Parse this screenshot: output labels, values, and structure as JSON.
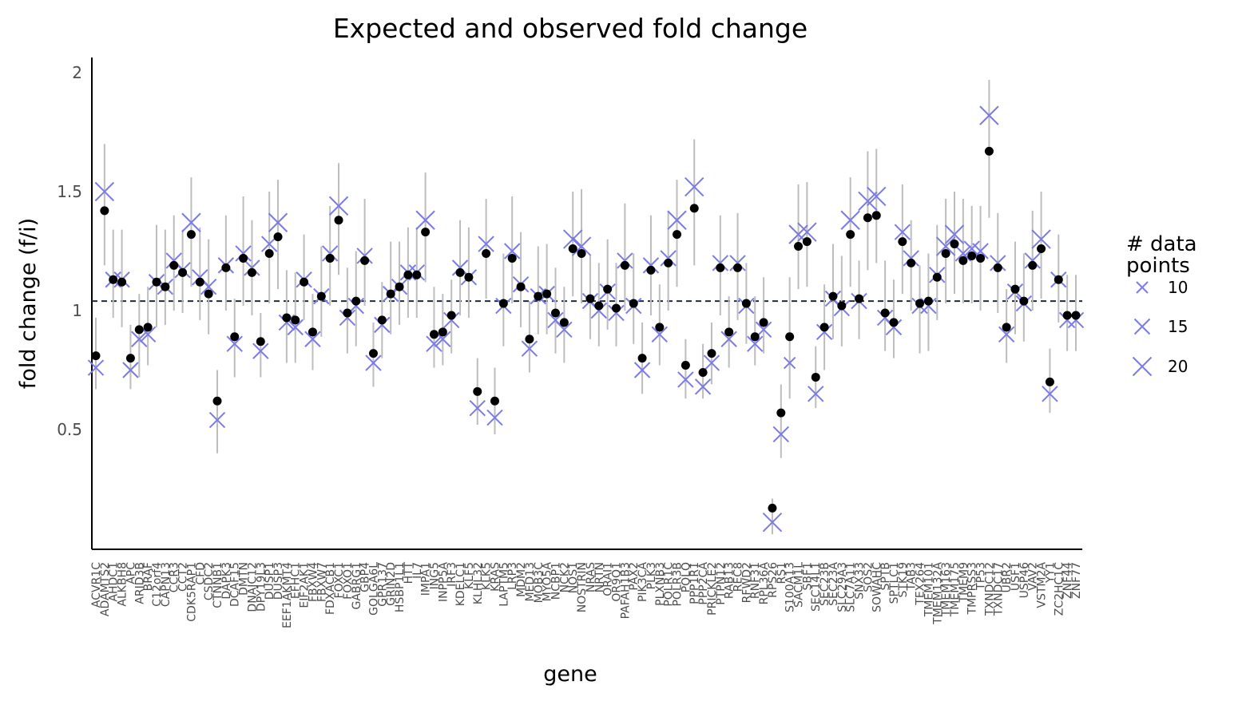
{
  "chart_data": {
    "type": "scatter",
    "title": "Expected and observed fold change",
    "xlabel": "gene",
    "ylabel": "fold change (f/i)",
    "ylim": [
      0,
      2.07
    ],
    "yticks": [
      0.5,
      1,
      1.5,
      2
    ],
    "ytick_labels": [
      "0.5",
      "1",
      "1.5",
      "2"
    ],
    "reference_line": 1.04,
    "grid": false,
    "legend": {
      "title_lines": [
        "# data",
        "points"
      ],
      "placement": "right",
      "entries": [
        {
          "label": "10",
          "size": 10
        },
        {
          "label": "15",
          "size": 15
        },
        {
          "label": "20",
          "size": 20
        }
      ]
    },
    "colors": {
      "observed": "#000000",
      "expected": "#7b7be8",
      "error_bar": "#bdbdbd",
      "reference": "#1c2a44"
    },
    "categories": [
      "ACVR1C",
      "ADAMTS2",
      "AHDC1",
      "ALKBH8",
      "APC",
      "ARID3B",
      "BRAF",
      "C12orf4",
      "CAPN13",
      "CCR3",
      "CCT2",
      "CDK5RAP1",
      "CFD",
      "CSDC2",
      "CTNNB1",
      "DAPK3",
      "DCAF15",
      "DMTN",
      "DNAJC12",
      "DPY19L3",
      "DUSP1",
      "DUSP3",
      "EEF1AKMT4",
      "EFHC1",
      "EIF2AK1",
      "FBXW4",
      "FBXW7",
      "FDXACB1",
      "FOXC1",
      "FOXO1",
      "GABRG1",
      "GBP4",
      "GOLGA6L",
      "GPR137",
      "GRIN2D",
      "HSBP1L1",
      "HTT",
      "IL7",
      "IMPA1",
      "ING5",
      "INPP5A",
      "IRF3",
      "KDELC1",
      "KLF5",
      "KLHL32",
      "KLK5",
      "KRAS",
      "LAPTM5",
      "LRP3",
      "MDM2",
      "MED13",
      "MOB3C",
      "MYO5A",
      "NCBP1",
      "NCK2",
      "NOS1",
      "NOSTRIN",
      "NRAS",
      "NRTN",
      "ORAI1",
      "OR9Q1",
      "PAFAH1B3",
      "PAX2",
      "PIK3CA",
      "PLK3",
      "PLXNB3",
      "POLR1C",
      "POLR3B",
      "POLQ",
      "PPP1R1",
      "PPP2CA",
      "PRICKLE2",
      "PTPN12",
      "RAB13",
      "REC8",
      "RFWD2",
      "RNF31",
      "RPL36A",
      "RPS26",
      "RS1",
      "S100A13",
      "SACM1L",
      "SBF1",
      "SEC14L1",
      "SEC23B",
      "SEC23A",
      "SLC29A3",
      "SLC7A11",
      "SNX33",
      "SOS2",
      "SOWAHC",
      "SPTB",
      "SPTLC1",
      "STK19",
      "TAB3",
      "TEX264",
      "TMEM101",
      "TMEM132A",
      "TMEM163",
      "TMEM175",
      "TMEM9",
      "TMPRSS3",
      "TP53",
      "TXNDC12",
      "TXNDC17",
      "UBR2",
      "USF1",
      "USP46",
      "VAV2",
      "VSTM2A",
      "YY1",
      "ZC2HC1C",
      "ZNF44",
      "ZNF77"
    ],
    "category_labels": [
      "ACVR1C",
      "ADAMTS2",
      "AHDC1",
      "ALKBH8",
      "APC",
      "ARID3B",
      "BRAF",
      "C12orf4",
      "CAPN13",
      "CCR3",
      "CCT2",
      "CDK5RAP1",
      "CFD",
      "CSDC2",
      "CTNNB1",
      "DAPK3",
      "DCAF15",
      "DMTN",
      "DNAJC12",
      "DPY19L3",
      "DUSP1",
      "DUSP3",
      "EEF1AKMT4",
      "EFHC1",
      "EIF2AK1",
      "FBXW4",
      "FBXW7",
      "FDXACB1",
      "FOXC1",
      "FOXO1",
      "GABRG1",
      "GBP4",
      "GOLGA6L",
      "GPR137",
      "GRIN2D",
      "HSBP1L1",
      "HTT",
      "IL7",
      "IMPA1",
      "ING5",
      "INPP5A",
      "IRF3",
      "KDELC1",
      "KLF5",
      "KLHL32",
      "KLK5",
      "KRAS",
      "LAPTM5",
      "LRP3",
      "MDM2",
      "MED13",
      "MOB3C",
      "MYO5A",
      "NCBP1",
      "NCK2",
      "NOS1",
      "NOSTRIN",
      "NRAS",
      "NRTN",
      "ORAI1",
      "OR9Q1",
      "PAFAH1B3",
      "PAX2",
      "PIK3CA",
      "PLK3",
      "PLXNB3",
      "POLR1C",
      "POLR3B",
      "POLQ",
      "PPP1R1",
      "PPP2CA",
      "PRICKLE2",
      "PTPN12",
      "RAB13",
      "REC8",
      "RFWD2",
      "RNF31",
      "RPL36A",
      "RPS26",
      "RS1",
      "S100A13",
      "SACM1L",
      "SBF1",
      "SEC14L1",
      "SEC23B",
      "SEC23A",
      "SLC29A3",
      "SLC7A11",
      "SNX33",
      "SOS2",
      "SOWAHC",
      "SPTB",
      "SPTLC1",
      "STK19",
      "TAB3",
      "TEX264",
      "TMEM101",
      "TMEM132A",
      "TMEM163",
      "TMEM175",
      "TMEM9",
      "TMPRSS3",
      "TP53",
      "TXNDC12",
      "TXNDC17",
      "UBR2",
      "USF1",
      "USP46",
      "VAV2",
      "VSTM2A",
      "YY1",
      "ZC2HC1C",
      "ZNF44",
      "ZNF77"
    ],
    "series": [
      {
        "name": "observed",
        "values": [
          0.81,
          1.42,
          1.13,
          1.12,
          0.8,
          0.92,
          0.93,
          1.12,
          1.1,
          1.19,
          1.16,
          1.32,
          1.12,
          1.07,
          0.62,
          1.18,
          0.89,
          1.22,
          1.16,
          0.87,
          1.24,
          1.31,
          0.97,
          0.96,
          1.12,
          0.91,
          1.06,
          1.22,
          1.38,
          0.99,
          1.04,
          1.21,
          0.82,
          0.96,
          1.07,
          1.1,
          1.15,
          1.15,
          1.33,
          0.9,
          0.91,
          0.98,
          1.16,
          1.14,
          0.66,
          1.24,
          0.62,
          1.03,
          1.22,
          1.1,
          0.88,
          1.06,
          1.07,
          0.99,
          0.95,
          1.26,
          1.24,
          1.05,
          1.02,
          1.09,
          1.01,
          1.19,
          1.03,
          0.8,
          1.17,
          0.93,
          1.2,
          1.32,
          0.77,
          1.43,
          0.74,
          0.82,
          1.18,
          0.91,
          1.18,
          1.03,
          0.89,
          0.95,
          0.17,
          0.57,
          0.89,
          1.27,
          1.29,
          0.72,
          0.93,
          1.06,
          1.02,
          1.32,
          1.05,
          1.39,
          1.4,
          0.99,
          0.95,
          1.29,
          1.2,
          1.03,
          1.04,
          1.14,
          1.24,
          1.28,
          1.21,
          1.23,
          1.22,
          1.67,
          1.18,
          0.93,
          1.09,
          1.04,
          1.19,
          1.26,
          0.7,
          1.13,
          0.98,
          0.98
        ]
      },
      {
        "name": "expected",
        "values": [
          0.76,
          1.5,
          1.13,
          1.13,
          0.75,
          0.88,
          0.9,
          1.12,
          1.1,
          1.21,
          1.17,
          1.37,
          1.14,
          1.1,
          0.54,
          1.19,
          0.86,
          1.24,
          1.18,
          0.83,
          1.28,
          1.37,
          0.95,
          0.93,
          1.13,
          0.88,
          1.06,
          1.24,
          1.44,
          0.97,
          1.02,
          1.23,
          0.78,
          0.94,
          1.07,
          1.1,
          1.16,
          1.16,
          1.38,
          0.86,
          0.88,
          0.96,
          1.18,
          1.14,
          0.59,
          1.28,
          0.55,
          1.02,
          1.25,
          1.11,
          0.84,
          1.06,
          1.07,
          0.96,
          0.92,
          1.3,
          1.27,
          1.04,
          1.0,
          1.08,
          0.99,
          1.21,
          1.02,
          0.75,
          1.19,
          0.9,
          1.22,
          1.38,
          0.71,
          1.52,
          0.68,
          0.78,
          1.2,
          0.88,
          1.2,
          1.02,
          0.86,
          0.92,
          0.11,
          0.48,
          0.78,
          1.32,
          1.33,
          0.65,
          0.91,
          1.05,
          1.01,
          1.38,
          1.04,
          1.46,
          1.48,
          0.97,
          0.93,
          1.33,
          1.22,
          1.02,
          1.02,
          1.15,
          1.27,
          1.32,
          1.24,
          1.26,
          1.25,
          1.82,
          1.2,
          0.9,
          1.08,
          1.03,
          1.21,
          1.3,
          0.65,
          1.13,
          0.96,
          0.96
        ]
      },
      {
        "name": "error_low",
        "values": [
          0.67,
          1.19,
          0.97,
          0.93,
          0.67,
          0.72,
          0.77,
          0.93,
          0.94,
          1.0,
          0.99,
          1.1,
          0.96,
          0.9,
          0.4,
          1.0,
          0.72,
          1.02,
          0.98,
          0.72,
          1.03,
          1.09,
          0.78,
          0.78,
          0.96,
          0.75,
          0.89,
          1.02,
          1.15,
          0.82,
          0.85,
          1.02,
          0.68,
          0.8,
          0.9,
          0.94,
          0.97,
          0.97,
          1.12,
          0.76,
          0.77,
          0.82,
          0.98,
          0.97,
          0.52,
          1.05,
          0.48,
          0.85,
          1.03,
          0.93,
          0.74,
          0.9,
          0.9,
          0.82,
          0.78,
          1.06,
          1.03,
          0.88,
          0.85,
          0.92,
          0.85,
          1.0,
          0.86,
          0.65,
          0.98,
          0.77,
          1.0,
          1.1,
          0.63,
          1.19,
          0.63,
          0.69,
          0.98,
          0.76,
          0.96,
          0.86,
          0.77,
          0.82,
          0.06,
          0.38,
          0.63,
          1.09,
          1.1,
          0.59,
          0.75,
          0.88,
          0.85,
          1.1,
          0.88,
          1.17,
          1.2,
          0.83,
          0.8,
          1.07,
          1.0,
          0.82,
          0.83,
          0.96,
          1.03,
          1.07,
          1.03,
          1.03,
          1.0,
          1.39,
          0.99,
          0.78,
          0.9,
          0.87,
          1.0,
          1.05,
          0.57,
          0.95,
          0.83,
          0.83
        ]
      },
      {
        "name": "error_high",
        "values": [
          0.97,
          1.7,
          1.34,
          1.34,
          0.94,
          1.07,
          1.1,
          1.36,
          1.34,
          1.4,
          1.34,
          1.56,
          1.35,
          1.3,
          0.75,
          1.4,
          1.05,
          1.48,
          1.38,
          0.99,
          1.5,
          1.55,
          1.17,
          1.16,
          1.32,
          1.07,
          1.27,
          1.44,
          1.62,
          1.18,
          1.25,
          1.47,
          0.95,
          1.12,
          1.29,
          1.29,
          1.35,
          1.35,
          1.58,
          1.1,
          1.07,
          1.13,
          1.38,
          1.35,
          0.8,
          1.47,
          0.76,
          1.24,
          1.48,
          1.33,
          1.04,
          1.27,
          1.28,
          1.18,
          1.1,
          1.5,
          1.51,
          1.23,
          1.2,
          1.3,
          1.2,
          1.45,
          1.24,
          0.95,
          1.4,
          1.11,
          1.42,
          1.55,
          0.88,
          1.72,
          0.86,
          0.95,
          1.4,
          1.06,
          1.41,
          1.2,
          1.06,
          1.14,
          0.21,
          0.69,
          1.14,
          1.53,
          1.54,
          0.85,
          1.11,
          1.28,
          1.23,
          1.56,
          1.21,
          1.67,
          1.68,
          1.21,
          1.13,
          1.53,
          1.38,
          1.19,
          1.24,
          1.36,
          1.47,
          1.5,
          1.47,
          1.44,
          1.44,
          1.97,
          1.41,
          1.09,
          1.29,
          1.24,
          1.42,
          1.5,
          0.84,
          1.32,
          1.15,
          1.15
        ]
      },
      {
        "name": "expected_size",
        "values": [
          15,
          20,
          15,
          15,
          15,
          15,
          15,
          15,
          15,
          15,
          15,
          20,
          15,
          15,
          15,
          15,
          15,
          15,
          15,
          15,
          15,
          20,
          15,
          15,
          15,
          15,
          15,
          15,
          20,
          15,
          15,
          15,
          15,
          15,
          15,
          15,
          15,
          15,
          20,
          15,
          15,
          15,
          15,
          15,
          15,
          15,
          15,
          15,
          15,
          15,
          15,
          15,
          15,
          15,
          15,
          20,
          20,
          15,
          15,
          15,
          15,
          15,
          15,
          15,
          15,
          15,
          15,
          20,
          15,
          20,
          15,
          15,
          15,
          15,
          15,
          15,
          15,
          15,
          20,
          15,
          10,
          20,
          20,
          15,
          15,
          15,
          15,
          20,
          15,
          20,
          20,
          15,
          15,
          15,
          15,
          15,
          15,
          15,
          20,
          20,
          15,
          15,
          15,
          20,
          15,
          15,
          15,
          15,
          15,
          20,
          15,
          15,
          15,
          15
        ]
      }
    ]
  }
}
